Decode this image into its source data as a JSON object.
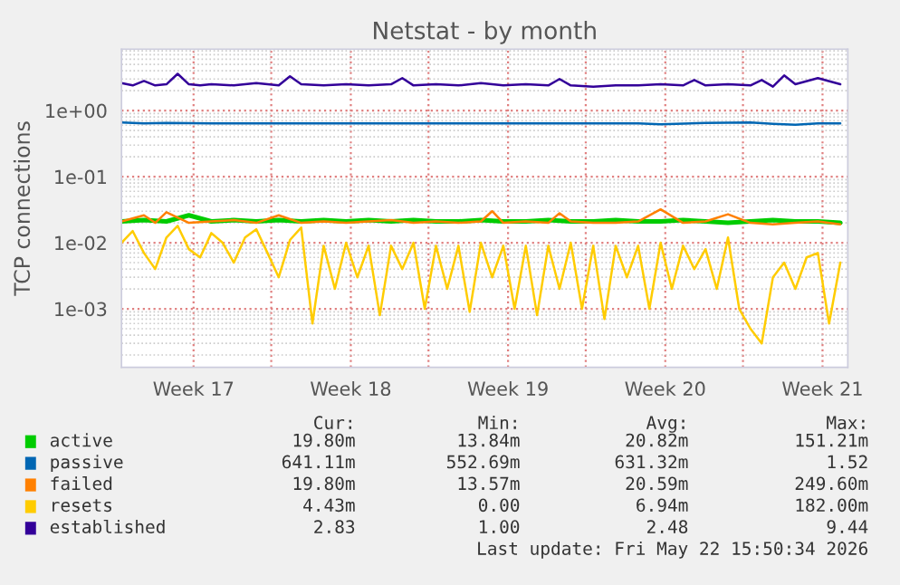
{
  "chart_data": {
    "type": "line",
    "title": "Netstat - by month",
    "ylabel": "TCP connections",
    "log": "y",
    "grid": true,
    "legend": "bottom",
    "xlim": [
      "2026-04-20T08:00",
      "2026-05-22T16:00"
    ],
    "ylim": [
      0.00013,
      8.5
    ],
    "xticks": [
      {
        "value": "2026-04-23T13:00",
        "label": "Week 17"
      },
      {
        "value": "2026-04-27T00:00",
        "label": null
      },
      {
        "value": "2026-04-30T13:00",
        "label": "Week 18"
      },
      {
        "value": "2026-05-04T00:00",
        "label": null
      },
      {
        "value": "2026-05-07T13:00",
        "label": "Week 19"
      },
      {
        "value": "2026-05-11T00:00",
        "label": null
      },
      {
        "value": "2026-05-14T13:00",
        "label": "Week 20"
      },
      {
        "value": "2026-05-18T00:00",
        "label": null
      },
      {
        "value": "2026-05-21T13:00",
        "label": "Week 21"
      }
    ],
    "yticks": [
      {
        "value": 0.001,
        "label": "1e-03"
      },
      {
        "value": 0.01,
        "label": "1e-02"
      },
      {
        "value": 0.1,
        "label": "1e-01"
      },
      {
        "value": 1,
        "label": "1e+00"
      }
    ],
    "series": [
      {
        "name": "active",
        "color": "#00cc00",
        "x": [
          "2026-04-20T08:00",
          "2026-04-21T08:00",
          "2026-04-22T08:00",
          "2026-04-23T08:00",
          "2026-04-24T08:00",
          "2026-04-25T08:00",
          "2026-04-26T08:00",
          "2026-04-27T08:00",
          "2026-04-28T08:00",
          "2026-04-29T08:00",
          "2026-04-30T08:00",
          "2026-05-01T08:00",
          "2026-05-02T08:00",
          "2026-05-03T08:00",
          "2026-05-04T08:00",
          "2026-05-05T08:00",
          "2026-05-06T08:00",
          "2026-05-07T08:00",
          "2026-05-08T08:00",
          "2026-05-09T08:00",
          "2026-05-10T08:00",
          "2026-05-11T08:00",
          "2026-05-12T08:00",
          "2026-05-13T08:00",
          "2026-05-14T08:00",
          "2026-05-15T08:00",
          "2026-05-16T08:00",
          "2026-05-17T08:00",
          "2026-05-18T08:00",
          "2026-05-19T08:00",
          "2026-05-20T08:00",
          "2026-05-21T08:00",
          "2026-05-22T08:00"
        ],
        "values": [
          0.021,
          0.022,
          0.021,
          0.026,
          0.021,
          0.022,
          0.021,
          0.022,
          0.021,
          0.022,
          0.021,
          0.022,
          0.021,
          0.022,
          0.021,
          0.021,
          0.022,
          0.021,
          0.021,
          0.022,
          0.021,
          0.021,
          0.022,
          0.021,
          0.021,
          0.022,
          0.021,
          0.02,
          0.021,
          0.022,
          0.021,
          0.021,
          0.02
        ]
      },
      {
        "name": "passive",
        "color": "#0066b3",
        "x": [
          "2026-04-20T08:00",
          "2026-04-21T08:00",
          "2026-04-22T08:00",
          "2026-04-24T08:00",
          "2026-04-28T08:00",
          "2026-05-02T08:00",
          "2026-05-06T08:00",
          "2026-05-10T08:00",
          "2026-05-13T08:00",
          "2026-05-14T08:00",
          "2026-05-16T08:00",
          "2026-05-18T08:00",
          "2026-05-19T08:00",
          "2026-05-20T08:00",
          "2026-05-21T08:00",
          "2026-05-22T08:00"
        ],
        "values": [
          0.66,
          0.64,
          0.65,
          0.64,
          0.64,
          0.64,
          0.64,
          0.64,
          0.64,
          0.62,
          0.65,
          0.66,
          0.63,
          0.61,
          0.64,
          0.64
        ]
      },
      {
        "name": "failed",
        "color": "#ff8000",
        "x": [
          "2026-04-20T08:00",
          "2026-04-21T08:00",
          "2026-04-21T20:00",
          "2026-04-22T08:00",
          "2026-04-23T08:00",
          "2026-04-24T08:00",
          "2026-04-25T08:00",
          "2026-04-26T08:00",
          "2026-04-27T08:00",
          "2026-04-28T08:00",
          "2026-04-29T08:00",
          "2026-04-30T08:00",
          "2026-05-01T08:00",
          "2026-05-02T08:00",
          "2026-05-03T08:00",
          "2026-05-04T08:00",
          "2026-05-05T08:00",
          "2026-05-06T08:00",
          "2026-05-06T20:00",
          "2026-05-07T08:00",
          "2026-05-08T08:00",
          "2026-05-09T08:00",
          "2026-05-09T20:00",
          "2026-05-10T08:00",
          "2026-05-11T08:00",
          "2026-05-12T08:00",
          "2026-05-13T08:00",
          "2026-05-14T08:00",
          "2026-05-15T08:00",
          "2026-05-16T08:00",
          "2026-05-17T08:00",
          "2026-05-18T08:00",
          "2026-05-19T08:00",
          "2026-05-20T08:00",
          "2026-05-21T08:00",
          "2026-05-22T08:00"
        ],
        "values": [
          0.021,
          0.026,
          0.02,
          0.029,
          0.02,
          0.021,
          0.022,
          0.02,
          0.026,
          0.02,
          0.021,
          0.02,
          0.021,
          0.022,
          0.02,
          0.021,
          0.02,
          0.021,
          0.03,
          0.02,
          0.021,
          0.02,
          0.028,
          0.021,
          0.02,
          0.02,
          0.021,
          0.032,
          0.02,
          0.021,
          0.027,
          0.02,
          0.019,
          0.02,
          0.021,
          0.019
        ]
      },
      {
        "name": "resets",
        "color": "#ffcc00",
        "x": [
          "2026-04-20T08:00",
          "2026-04-20T20:00",
          "2026-04-21T08:00",
          "2026-04-21T20:00",
          "2026-04-22T08:00",
          "2026-04-22T20:00",
          "2026-04-23T08:00",
          "2026-04-23T20:00",
          "2026-04-24T08:00",
          "2026-04-24T20:00",
          "2026-04-25T08:00",
          "2026-04-25T20:00",
          "2026-04-26T08:00",
          "2026-04-26T20:00",
          "2026-04-27T08:00",
          "2026-04-27T20:00",
          "2026-04-28T08:00",
          "2026-04-28T20:00",
          "2026-04-29T08:00",
          "2026-04-29T20:00",
          "2026-04-30T08:00",
          "2026-04-30T20:00",
          "2026-05-01T08:00",
          "2026-05-01T20:00",
          "2026-05-02T08:00",
          "2026-05-02T20:00",
          "2026-05-03T08:00",
          "2026-05-03T20:00",
          "2026-05-04T08:00",
          "2026-05-04T20:00",
          "2026-05-05T08:00",
          "2026-05-05T20:00",
          "2026-05-06T08:00",
          "2026-05-06T20:00",
          "2026-05-07T08:00",
          "2026-05-07T20:00",
          "2026-05-08T08:00",
          "2026-05-08T20:00",
          "2026-05-09T08:00",
          "2026-05-09T20:00",
          "2026-05-10T08:00",
          "2026-05-10T20:00",
          "2026-05-11T08:00",
          "2026-05-11T20:00",
          "2026-05-12T08:00",
          "2026-05-12T20:00",
          "2026-05-13T08:00",
          "2026-05-13T20:00",
          "2026-05-14T08:00",
          "2026-05-14T20:00",
          "2026-05-15T08:00",
          "2026-05-15T20:00",
          "2026-05-16T08:00",
          "2026-05-16T20:00",
          "2026-05-17T08:00",
          "2026-05-17T20:00",
          "2026-05-18T08:00",
          "2026-05-18T20:00",
          "2026-05-19T08:00",
          "2026-05-19T20:00",
          "2026-05-20T08:00",
          "2026-05-20T20:00",
          "2026-05-21T08:00",
          "2026-05-21T20:00",
          "2026-05-22T08:00"
        ],
        "values": [
          0.01,
          0.015,
          0.007,
          0.004,
          0.012,
          0.018,
          0.008,
          0.006,
          0.014,
          0.01,
          0.005,
          0.012,
          0.016,
          0.007,
          0.003,
          0.011,
          0.017,
          0.0006,
          0.009,
          0.002,
          0.01,
          0.003,
          0.009,
          0.0008,
          0.009,
          0.004,
          0.01,
          0.001,
          0.009,
          0.002,
          0.009,
          0.0009,
          0.01,
          0.003,
          0.009,
          0.001,
          0.009,
          0.0008,
          0.009,
          0.002,
          0.01,
          0.001,
          0.009,
          0.0007,
          0.009,
          0.003,
          0.009,
          0.001,
          0.01,
          0.002,
          0.009,
          0.004,
          0.008,
          0.002,
          0.012,
          0.001,
          0.0005,
          0.0003,
          0.003,
          0.005,
          0.002,
          0.006,
          0.007,
          0.0006,
          0.005
        ]
      },
      {
        "name": "established",
        "color": "#330099",
        "x": [
          "2026-04-20T08:00",
          "2026-04-20T20:00",
          "2026-04-21T08:00",
          "2026-04-21T20:00",
          "2026-04-22T08:00",
          "2026-04-22T20:00",
          "2026-04-23T08:00",
          "2026-04-23T20:00",
          "2026-04-24T08:00",
          "2026-04-25T08:00",
          "2026-04-26T08:00",
          "2026-04-27T08:00",
          "2026-04-27T20:00",
          "2026-04-28T08:00",
          "2026-04-29T08:00",
          "2026-04-30T08:00",
          "2026-05-01T08:00",
          "2026-05-02T08:00",
          "2026-05-02T20:00",
          "2026-05-03T08:00",
          "2026-05-04T08:00",
          "2026-05-05T08:00",
          "2026-05-06T08:00",
          "2026-05-07T08:00",
          "2026-05-08T08:00",
          "2026-05-09T08:00",
          "2026-05-09T20:00",
          "2026-05-10T08:00",
          "2026-05-11T08:00",
          "2026-05-12T08:00",
          "2026-05-13T08:00",
          "2026-05-14T08:00",
          "2026-05-15T08:00",
          "2026-05-15T20:00",
          "2026-05-16T08:00",
          "2026-05-17T08:00",
          "2026-05-18T08:00",
          "2026-05-18T20:00",
          "2026-05-19T08:00",
          "2026-05-19T20:00",
          "2026-05-20T08:00",
          "2026-05-21T08:00",
          "2026-05-22T08:00"
        ],
        "values": [
          2.6,
          2.4,
          2.8,
          2.4,
          2.5,
          3.6,
          2.5,
          2.4,
          2.5,
          2.4,
          2.6,
          2.4,
          3.3,
          2.5,
          2.4,
          2.5,
          2.4,
          2.5,
          3.1,
          2.4,
          2.5,
          2.4,
          2.6,
          2.4,
          2.5,
          2.4,
          3.0,
          2.4,
          2.3,
          2.4,
          2.4,
          2.5,
          2.4,
          2.9,
          2.4,
          2.5,
          2.4,
          2.9,
          2.3,
          3.4,
          2.5,
          3.1,
          2.5
        ]
      }
    ],
    "annotations": [
      "Cur:",
      "Min:",
      "Avg:",
      "Max:",
      "19.80m",
      "13.84m",
      "20.82m",
      "151.21m",
      "641.11m",
      "552.69m",
      "631.32m",
      "1.52",
      "19.80m",
      "13.57m",
      "20.59m",
      "249.60m",
      "4.43m",
      "0.00",
      "6.94m",
      "182.00m",
      "2.83",
      "1.00",
      "2.48",
      "9.44",
      "Last update: Fri May 22 15:50:34 2026"
    ]
  }
}
